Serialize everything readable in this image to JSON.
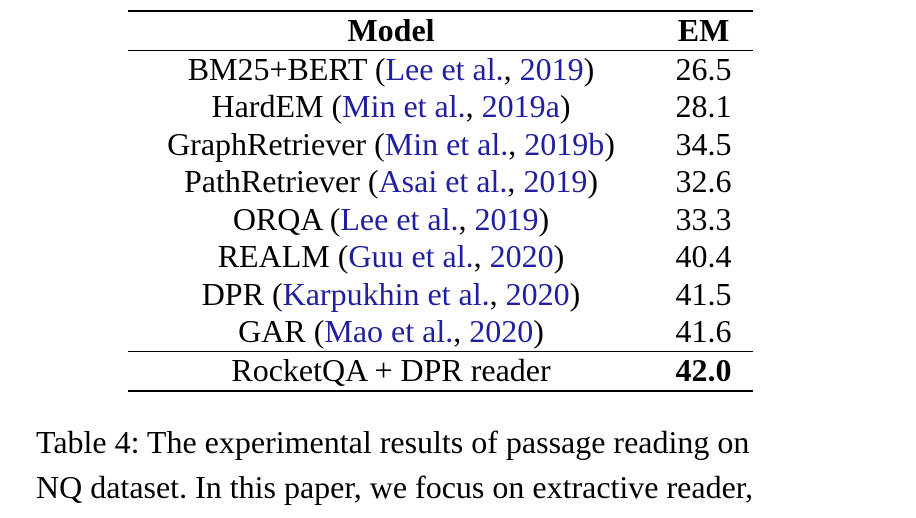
{
  "table": {
    "headers": {
      "model": "Model",
      "em": "EM"
    },
    "rows": [
      {
        "model": "BM25+BERT",
        "open": " (",
        "cite_author": "Lee et al.",
        "sep": ", ",
        "cite_year": "2019",
        "close": ")",
        "em": "26.5"
      },
      {
        "model": "HardEM",
        "open": " (",
        "cite_author": "Min et al.",
        "sep": ", ",
        "cite_year": "2019a",
        "close": ")",
        "em": "28.1"
      },
      {
        "model": "GraphRetriever",
        "open": " (",
        "cite_author": "Min et al.",
        "sep": ", ",
        "cite_year": "2019b",
        "close": ")",
        "em": "34.5"
      },
      {
        "model": "PathRetriever",
        "open": " (",
        "cite_author": "Asai et al.",
        "sep": ", ",
        "cite_year": "2019",
        "close": ")",
        "em": "32.6"
      },
      {
        "model": "ORQA",
        "open": " (",
        "cite_author": "Lee et al.",
        "sep": ", ",
        "cite_year": "2019",
        "close": ")",
        "em": "33.3"
      },
      {
        "model": "REALM",
        "open": " (",
        "cite_author": "Guu et al.",
        "sep": ", ",
        "cite_year": "2020",
        "close": ")",
        "em": "40.4"
      },
      {
        "model": "DPR",
        "open": " (",
        "cite_author": "Karpukhin et al.",
        "sep": ", ",
        "cite_year": "2020",
        "close": ")",
        "em": "41.5"
      },
      {
        "model": "GAR",
        "open": " (",
        "cite_author": "Mao et al.",
        "sep": ", ",
        "cite_year": "2020",
        "close": ")",
        "em": "41.6"
      }
    ],
    "proposed": {
      "model": "RocketQA + DPR reader",
      "em": "42.0"
    }
  },
  "caption": {
    "line1": "Table 4: The experimental results of passage reading on",
    "line2": "NQ dataset. In this paper, we focus on extractive reader,"
  },
  "colors": {
    "citation_link": "#1f1fa0",
    "text": "#000000"
  }
}
